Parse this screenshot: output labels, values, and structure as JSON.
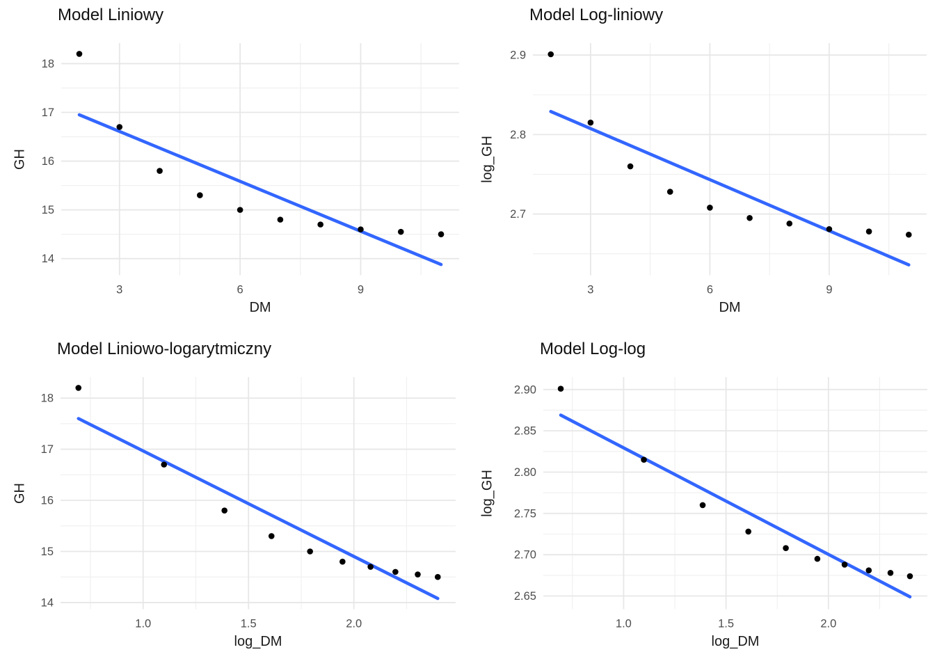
{
  "styles": {
    "background": "#FFFFFF",
    "point_color": "#000000",
    "trend_line_color": "#3366FF",
    "grid_major_color": "#E7E7E7",
    "grid_minor_color": "#EFEFEF",
    "tick_label_color": "#4D4D4D",
    "title_color": "#111111",
    "axis_title_color": "#1A1A1A"
  },
  "chart_data": [
    {
      "type": "scatter",
      "title": "Model Liniowy",
      "xlabel": "DM",
      "ylabel": "GH",
      "x": [
        2,
        3,
        4,
        5,
        6,
        7,
        8,
        9,
        10,
        11
      ],
      "y": [
        18.2,
        16.7,
        15.8,
        15.3,
        15.0,
        14.8,
        14.7,
        14.6,
        14.55,
        14.5
      ],
      "trend_line": {
        "x": [
          2,
          11
        ],
        "y": [
          16.95,
          13.88
        ]
      },
      "xlim": [
        1.55,
        11.45
      ],
      "ylim": [
        13.66,
        18.42
      ],
      "xticks": [
        3,
        6,
        9
      ],
      "xtick_labels": [
        "3",
        "6",
        "9"
      ],
      "xminor": [
        4.5,
        7.5,
        10.5
      ],
      "yticks": [
        14,
        15,
        16,
        17,
        18
      ],
      "ytick_labels": [
        "14",
        "15",
        "16",
        "17",
        "18"
      ],
      "yminor": [
        14.5,
        15.5,
        16.5,
        17.5
      ],
      "grid": true,
      "legend": false
    },
    {
      "type": "scatter",
      "title": "Model Log-liniowy",
      "xlabel": "DM",
      "ylabel": "log_GH",
      "x": [
        2,
        3,
        4,
        5,
        6,
        7,
        8,
        9,
        10,
        11
      ],
      "y": [
        2.901,
        2.815,
        2.76,
        2.728,
        2.708,
        2.695,
        2.688,
        2.681,
        2.678,
        2.674
      ],
      "trend_line": {
        "x": [
          2,
          11
        ],
        "y": [
          2.829,
          2.636
        ]
      },
      "xlim": [
        1.55,
        11.45
      ],
      "ylim": [
        2.623,
        2.915
      ],
      "xticks": [
        3,
        6,
        9
      ],
      "xtick_labels": [
        "3",
        "6",
        "9"
      ],
      "xminor": [
        4.5,
        7.5,
        10.5
      ],
      "yticks": [
        2.7,
        2.8,
        2.9
      ],
      "ytick_labels": [
        "2.7",
        "2.8",
        "2.9"
      ],
      "yminor": [
        2.65,
        2.75,
        2.85
      ],
      "grid": true,
      "legend": false
    },
    {
      "type": "scatter",
      "title": "Model Liniowo-logarytmiczny",
      "xlabel": "log_DM",
      "ylabel": "GH",
      "x": [
        0.693,
        1.099,
        1.386,
        1.609,
        1.792,
        1.946,
        2.079,
        2.197,
        2.303,
        2.398
      ],
      "y": [
        18.2,
        16.7,
        15.8,
        15.3,
        15.0,
        14.8,
        14.7,
        14.6,
        14.55,
        14.5
      ],
      "trend_line": {
        "x": [
          0.693,
          2.398
        ],
        "y": [
          17.6,
          14.08
        ]
      },
      "xlim": [
        0.608,
        2.483
      ],
      "ylim": [
        13.87,
        18.41
      ],
      "xticks": [
        1.0,
        1.5,
        2.0
      ],
      "xtick_labels": [
        "1.0",
        "1.5",
        "2.0"
      ],
      "xminor": [
        0.75,
        1.25,
        1.75,
        2.25
      ],
      "yticks": [
        14,
        15,
        16,
        17,
        18
      ],
      "ytick_labels": [
        "14",
        "15",
        "16",
        "17",
        "18"
      ],
      "yminor": [
        14.5,
        15.5,
        16.5,
        17.5
      ],
      "grid": true,
      "legend": false
    },
    {
      "type": "scatter",
      "title": "Model Log-log",
      "xlabel": "log_DM",
      "ylabel": "log_GH",
      "x": [
        0.693,
        1.099,
        1.386,
        1.609,
        1.792,
        1.946,
        2.079,
        2.197,
        2.303,
        2.398
      ],
      "y": [
        2.901,
        2.815,
        2.76,
        2.728,
        2.708,
        2.695,
        2.688,
        2.681,
        2.678,
        2.674
      ],
      "trend_line": {
        "x": [
          0.693,
          2.398
        ],
        "y": [
          2.869,
          2.649
        ]
      },
      "xlim": [
        0.608,
        2.483
      ],
      "ylim": [
        2.634,
        2.915
      ],
      "xticks": [
        1.0,
        1.5,
        2.0
      ],
      "xtick_labels": [
        "1.0",
        "1.5",
        "2.0"
      ],
      "xminor": [
        0.75,
        1.25,
        1.75,
        2.25
      ],
      "yticks": [
        2.65,
        2.7,
        2.75,
        2.8,
        2.85,
        2.9
      ],
      "ytick_labels": [
        "2.65",
        "2.70",
        "2.75",
        "2.80",
        "2.85",
        "2.90"
      ],
      "yminor": [
        2.675,
        2.725,
        2.775,
        2.825,
        2.875
      ],
      "grid": true,
      "legend": false
    }
  ]
}
